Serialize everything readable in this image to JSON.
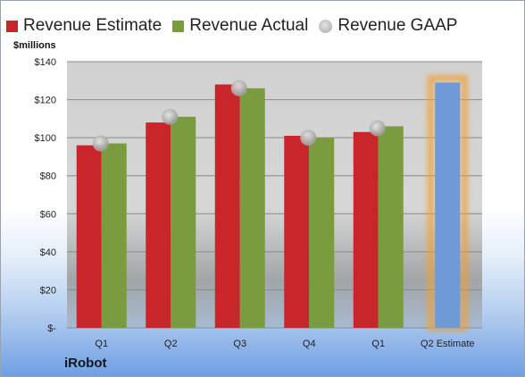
{
  "colors": {
    "estimate": "#c8262b",
    "actual": "#7a9c3f",
    "gaap": "#b4b4b4",
    "projected": "#6f9ad6",
    "highlight": "#f0a030"
  },
  "chart_data": {
    "type": "bar",
    "company": "iRobot",
    "unit_label": "$millions",
    "categories": [
      "Q1",
      "Q2",
      "Q3",
      "Q4",
      "Q1",
      "Q2 Estimate"
    ],
    "series": [
      {
        "name": "Revenue Estimate",
        "style": "bar",
        "color": "#c8262b",
        "values": [
          96,
          108,
          128,
          101,
          103,
          null
        ]
      },
      {
        "name": "Revenue Actual",
        "style": "bar",
        "color": "#7a9c3f",
        "values": [
          97,
          111,
          126,
          100,
          106,
          null
        ]
      },
      {
        "name": "Revenue GAAP",
        "style": "marker",
        "color": "#b4b4b4",
        "values": [
          97,
          111,
          126,
          100,
          105,
          null
        ]
      },
      {
        "style": "bar",
        "highlighted": true,
        "color": "#6f9ad6",
        "values": [
          null,
          null,
          null,
          null,
          null,
          129
        ]
      }
    ],
    "yticks": [
      "$-",
      "$20",
      "$40",
      "$60",
      "$80",
      "$100",
      "$120",
      "$140"
    ],
    "ylim": [
      0,
      140
    ],
    "grid": true,
    "legend_position": "top"
  }
}
